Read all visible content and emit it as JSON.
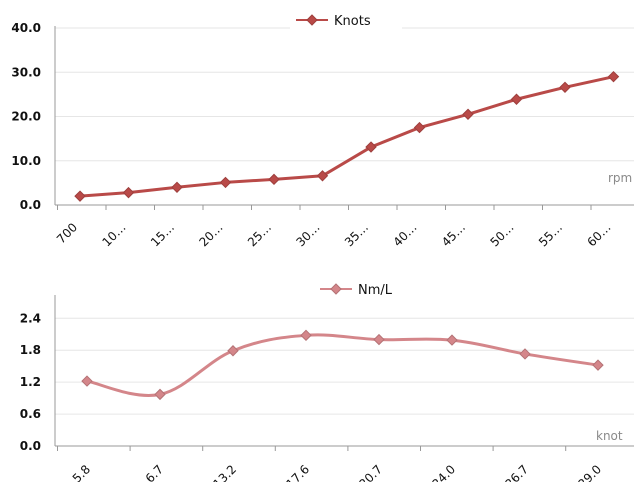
{
  "chart_data": [
    {
      "type": "line",
      "categories": [
        "700",
        "10…",
        "15…",
        "20…",
        "25…",
        "30…",
        "35…",
        "40…",
        "45…",
        "50…",
        "55…",
        "60…"
      ],
      "series": [
        {
          "name": "Knots",
          "values": [
            2.0,
            2.8,
            4.0,
            5.1,
            5.8,
            6.6,
            13.1,
            17.5,
            20.5,
            23.9,
            26.6,
            29.0
          ],
          "color": "#b94a48"
        }
      ],
      "ylim": [
        0,
        40
      ],
      "yticks": [
        "0.0",
        "10.0",
        "20.0",
        "30.0",
        "40.0"
      ],
      "unit_label": "rpm",
      "grid": true,
      "legend": "top-center",
      "smooth": false
    },
    {
      "type": "line",
      "categories": [
        "5.8",
        "6.7",
        "13.2",
        "17.6",
        "20.7",
        "24.0",
        "26.7",
        "29.0"
      ],
      "series": [
        {
          "name": "Nm/L",
          "values": [
            1.22,
            0.97,
            1.79,
            2.08,
            2.0,
            1.99,
            1.73,
            1.52
          ],
          "color": "#d4868a"
        }
      ],
      "ylim": [
        0,
        2.8
      ],
      "yticks": [
        "0.0",
        "0.6",
        "1.2",
        "1.8",
        "2.4"
      ],
      "unit_label": "knot",
      "grid": true,
      "legend": "top-center",
      "smooth": true
    }
  ]
}
